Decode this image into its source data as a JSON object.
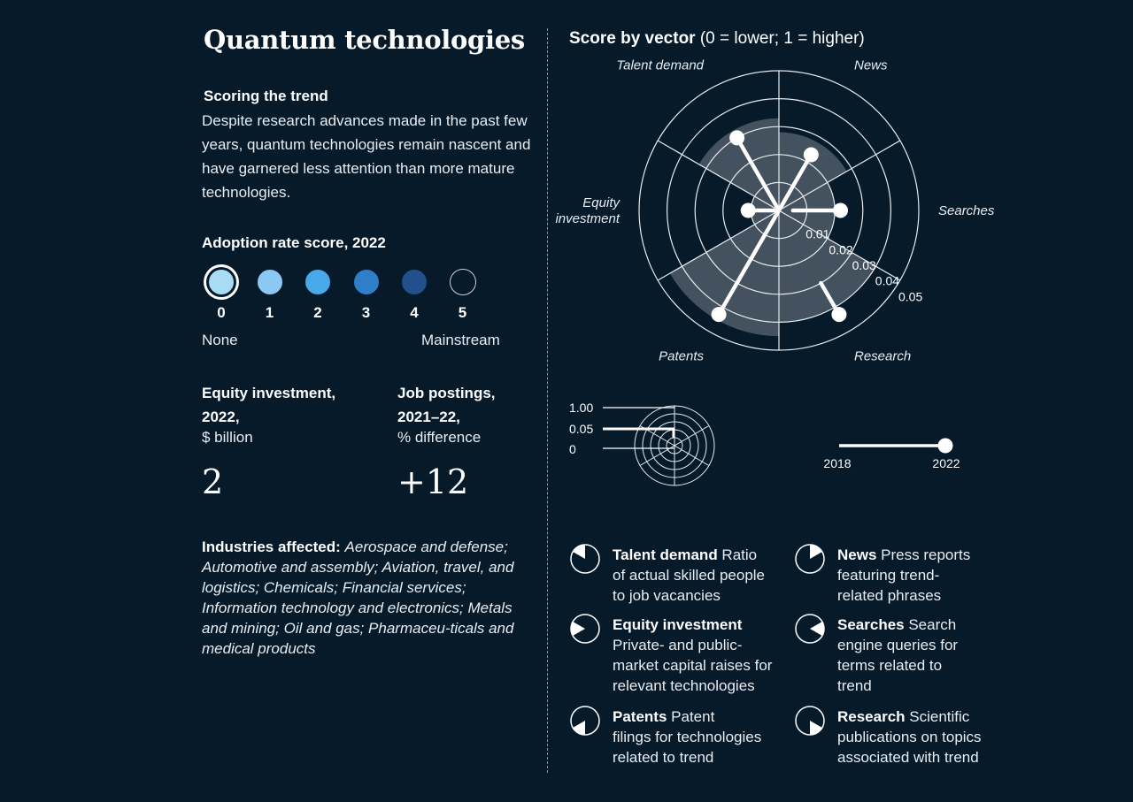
{
  "title": "Quantum technologies",
  "scoring": {
    "heading": "Scoring the trend",
    "body": "Despite research advances made in the past few years, quantum technologies remain nascent and have garnered less attention than more mature technologies."
  },
  "adoption": {
    "heading": "Adoption rate score, 2022",
    "levels": [
      "0",
      "1",
      "2",
      "3",
      "4",
      "5"
    ],
    "selected": 0,
    "colors": [
      "#a8dcf5",
      "#8cc8f4",
      "#47a8ea",
      "#2f7ec8",
      "#22508c",
      "#061a2a"
    ],
    "low_label": "None",
    "high_label": "Mainstream"
  },
  "equity": {
    "head1": "Equity investment,",
    "head2": "2022,",
    "unit": "$ billion",
    "value": "2"
  },
  "jobs": {
    "head1": "Job postings,",
    "head2": "2021–22,",
    "unit": "% difference",
    "value": "+12"
  },
  "industries": {
    "label": "Industries affected:",
    "text": "Aerospace and defense; Automotive and assembly; Aviation, travel, and logistics; Chemicals;  Financial services; Information technology and electronics; Metals and mining; Oil and gas; Pharmaceu-ticals and medical products"
  },
  "chart_data": {
    "type": "polar",
    "title": "Score by vector",
    "title_note": "(0 = lower; 1 = higher)",
    "radial_ticks": [
      "0.01",
      "0.02",
      "0.03",
      "0.04",
      "0.05"
    ],
    "scale_max": 0.05,
    "vectors": [
      {
        "name": "News",
        "score_2018": 0.0,
        "score_2022": 0.023,
        "fill": 0.028
      },
      {
        "name": "Searches",
        "score_2018": 0.005,
        "score_2022": 0.022,
        "fill": 0.02
      },
      {
        "name": "Research",
        "score_2018": 0.03,
        "score_2022": 0.043,
        "fill": 0.04
      },
      {
        "name": "Patents",
        "score_2018": 0.0,
        "score_2022": 0.043,
        "fill": 0.045
      },
      {
        "name": "Equity investment",
        "score_2018": 0.0,
        "score_2022": 0.011,
        "fill": 0.01
      },
      {
        "name": "Talent demand",
        "score_2018": 0.0,
        "score_2022": 0.03,
        "fill": 0.033
      }
    ]
  },
  "key": {
    "scale_labels": [
      "1.00",
      "0.05",
      "0"
    ],
    "year_start": "2018",
    "year_end": "2022"
  },
  "legend": [
    {
      "name": "Talent demand",
      "desc": "Ratio of actual skilled people to job vacancies",
      "lines": [
        "<b>Talent demand</b> Ratio",
        "of actual skilled people",
        "to job vacancies"
      ],
      "sector": 5
    },
    {
      "name": "News",
      "desc": "Press reports featuring trend-related phrases",
      "lines": [
        "<b>News</b> Press reports",
        "featuring trend-",
        "related phrases"
      ],
      "sector": 0
    },
    {
      "name": "Equity investment",
      "desc": "Private- and public-market capital raises for relevant technologies",
      "lines": [
        "<b>Equity investment</b>",
        "Private- and public-",
        "market capital raises for",
        "relevant technologies"
      ],
      "sector": 4
    },
    {
      "name": "Searches",
      "desc": "Search engine queries for terms related to trend",
      "lines": [
        "<b>Searches</b> Search",
        "engine queries for",
        "terms related to",
        "trend"
      ],
      "sector": 1
    },
    {
      "name": "Patents",
      "desc": "Patent filings for technologies related to trend",
      "lines": [
        "<b>Patents</b> Patent",
        "filings for technologies",
        "related to trend"
      ],
      "sector": 3
    },
    {
      "name": "Research",
      "desc": "Scientific publications on topics associated with trend",
      "lines": [
        "<b>Research</b> Scientific",
        "publications on topics",
        "associated with trend"
      ],
      "sector": 2
    }
  ]
}
